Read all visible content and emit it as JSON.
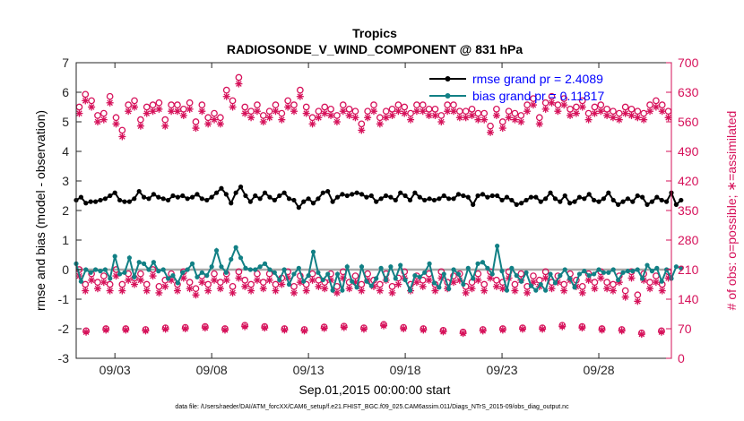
{
  "chart_data": {
    "type": "line",
    "title": "Tropics",
    "subtitle": "RADIOSONDE_V_WIND_COMPONENT @ 831 hPa",
    "xlabel": "Sep.01,2015 00:00:00 start",
    "ylabel": "rmse and bias (model - observation)",
    "y2label": "# of obs: o=possible; ∗=assimilated",
    "xlim": [
      0,
      30.75
    ],
    "ylim": [
      -3,
      7
    ],
    "y2lim": [
      0,
      700
    ],
    "xticks": [
      {
        "x": 2,
        "label": "09/03"
      },
      {
        "x": 7,
        "label": "09/08"
      },
      {
        "x": 12,
        "label": "09/13"
      },
      {
        "x": 17,
        "label": "09/18"
      },
      {
        "x": 22,
        "label": "09/23"
      },
      {
        "x": 27,
        "label": "09/28"
      }
    ],
    "yticks": [
      -3,
      -2,
      -1,
      0,
      1,
      2,
      3,
      4,
      5,
      6,
      7
    ],
    "y2ticks": [
      0,
      70,
      140,
      210,
      280,
      350,
      420,
      490,
      560,
      630,
      700
    ],
    "x_step_days": 0.25,
    "legend_position": "top-right",
    "series": [
      {
        "name": "rmse grand pr = 2.4089",
        "axis": "left",
        "color": "#000000",
        "marker": "filled-circle",
        "values": [
          2.35,
          2.45,
          2.25,
          2.3,
          2.3,
          2.35,
          2.4,
          2.5,
          2.6,
          2.35,
          2.3,
          2.3,
          2.4,
          2.65,
          2.45,
          2.4,
          2.55,
          2.45,
          2.4,
          2.35,
          2.5,
          2.45,
          2.5,
          2.4,
          2.45,
          2.55,
          2.4,
          2.35,
          2.45,
          2.6,
          2.75,
          2.55,
          2.25,
          2.6,
          2.8,
          2.5,
          2.3,
          2.5,
          2.4,
          2.6,
          2.45,
          2.35,
          2.5,
          2.6,
          2.4,
          2.35,
          2.1,
          2.3,
          2.4,
          2.25,
          2.4,
          2.6,
          2.65,
          2.3,
          2.45,
          2.55,
          2.5,
          2.55,
          2.6,
          2.55,
          2.45,
          2.5,
          2.3,
          2.4,
          2.5,
          2.45,
          2.35,
          2.6,
          2.5,
          2.35,
          2.6,
          2.45,
          2.35,
          2.4,
          2.35,
          2.4,
          2.5,
          2.4,
          2.4,
          2.55,
          2.5,
          2.45,
          2.2,
          2.5,
          2.55,
          2.45,
          2.5,
          2.5,
          2.35,
          2.45,
          2.35,
          2.2,
          2.25,
          2.35,
          2.45,
          2.45,
          2.3,
          2.4,
          2.6,
          2.4,
          2.3,
          2.5,
          2.25,
          2.3,
          2.45,
          2.4,
          2.55,
          2.35,
          2.3,
          2.4,
          2.6,
          2.35,
          2.2,
          2.3,
          2.4,
          2.3,
          2.5,
          2.45,
          2.2,
          2.3,
          2.45,
          2.35,
          2.3,
          2.6,
          2.2,
          2.35
        ]
      },
      {
        "name": "bias grand pr = 0.11817",
        "axis": "left",
        "color": "#128085",
        "marker": "filled-circle",
        "values": [
          0.2,
          -0.4,
          0.0,
          -0.1,
          0.0,
          -0.05,
          0.0,
          -0.3,
          0.45,
          -0.15,
          -0.1,
          0.4,
          -0.25,
          0.25,
          0.2,
          0.0,
          0.25,
          -0.05,
          0.0,
          -0.3,
          -0.2,
          -0.45,
          -0.1,
          0.0,
          0.2,
          -0.25,
          -0.1,
          -0.2,
          0.1,
          0.65,
          0.1,
          -0.1,
          0.35,
          0.75,
          0.4,
          0.05,
          0.0,
          0.0,
          0.1,
          0.2,
          0.0,
          -0.1,
          -0.35,
          0.0,
          -0.5,
          -0.15,
          0.05,
          -0.4,
          -0.2,
          0.6,
          -0.1,
          -0.35,
          -0.15,
          -0.7,
          -0.15,
          -0.7,
          0.1,
          -0.4,
          -0.6,
          0.1,
          -0.4,
          -0.55,
          -0.3,
          0.05,
          -0.35,
          0.1,
          -0.3,
          0.15,
          -0.35,
          -0.7,
          -0.2,
          -0.25,
          -0.1,
          0.2,
          -0.45,
          -0.6,
          -0.15,
          -0.65,
          0.0,
          -0.15,
          -0.5,
          0.05,
          -0.3,
          0.2,
          0.25,
          0.05,
          -0.15,
          0.8,
          -0.05,
          -0.7,
          0.05,
          -0.2,
          -0.4,
          -0.1,
          -0.55,
          -0.7,
          -0.5,
          -0.7,
          -0.15,
          -0.45,
          -0.2,
          0.0,
          -0.3,
          -0.6,
          -0.15,
          -0.05,
          -0.2,
          -0.15,
          0.0,
          -0.1,
          -0.1,
          0.0,
          -0.35,
          -0.1,
          -0.05,
          -0.05,
          0.0,
          -0.3,
          0.15,
          -0.05,
          0.05,
          -0.4,
          0.0,
          -0.3,
          0.1,
          0.05
        ]
      },
      {
        "name": "obs possible (upper)",
        "axis": "right",
        "color": "#d6115a",
        "marker": "open-circle",
        "values": [
          595,
          625,
          610,
          575,
          580,
          620,
          570,
          540,
          600,
          610,
          565,
          595,
          600,
          605,
          565,
          600,
          600,
          590,
          605,
          560,
          600,
          570,
          580,
          570,
          635,
          610,
          665,
          595,
          585,
          600,
          575,
          585,
          600,
          580,
          610,
          600,
          635,
          595,
          570,
          585,
          595,
          590,
          575,
          600,
          590,
          585,
          555,
          585,
          600,
          570,
          585,
          590,
          600,
          595,
          580,
          600,
          600,
          590,
          590,
          575,
          600,
          600,
          585,
          585,
          590,
          580,
          580,
          550,
          590,
          560,
          585,
          580,
          575,
          600,
          615,
          570,
          605,
          620,
          600,
          615,
          590,
          595,
          610,
          580,
          595,
          600,
          590,
          585,
          580,
          595,
          590,
          585,
          580,
          600,
          610,
          600,
          585
        ]
      },
      {
        "name": "obs assimilated (upper)",
        "axis": "right",
        "color": "#d6115a",
        "marker": "asterisk",
        "values": [
          580,
          610,
          595,
          560,
          565,
          605,
          555,
          525,
          585,
          595,
          550,
          580,
          585,
          590,
          550,
          585,
          585,
          575,
          590,
          545,
          585,
          555,
          565,
          555,
          620,
          595,
          650,
          580,
          570,
          585,
          560,
          570,
          585,
          565,
          595,
          585,
          620,
          580,
          555,
          570,
          580,
          575,
          560,
          585,
          575,
          570,
          540,
          570,
          585,
          555,
          570,
          575,
          585,
          580,
          565,
          585,
          585,
          575,
          575,
          560,
          585,
          585,
          570,
          570,
          575,
          565,
          565,
          535,
          575,
          545,
          570,
          565,
          560,
          585,
          600,
          555,
          590,
          605,
          585,
          600,
          575,
          580,
          595,
          565,
          580,
          585,
          575,
          570,
          565,
          580,
          575,
          570,
          565,
          585,
          595,
          585,
          570
        ]
      },
      {
        "name": "obs possible (lower)",
        "axis": "right",
        "color": "#d6115a",
        "marker": "open-circle",
        "values": [
          210,
          175,
          200,
          180,
          195,
          175,
          210,
          175,
          200,
          190,
          200,
          175,
          210,
          170,
          185,
          200,
          175,
          205,
          180,
          165,
          195,
          175,
          200,
          180,
          200,
          170,
          205,
          185,
          175,
          200,
          180,
          200,
          175,
          190,
          205,
          170,
          195,
          175,
          200,
          185,
          180,
          200,
          170,
          205,
          180,
          195,
          175,
          200,
          185,
          175,
          200,
          170,
          190,
          205,
          175,
          195,
          185,
          200,
          175,
          205,
          180,
          195,
          200,
          170,
          180,
          200,
          175,
          205,
          185,
          180,
          205,
          175,
          200,
          170,
          195,
          185,
          205,
          180,
          195,
          175,
          200,
          185,
          170,
          200,
          180,
          205,
          180,
          175,
          195,
          160,
          205,
          150,
          200,
          180,
          195,
          175,
          205
        ]
      },
      {
        "name": "obs assimilated (lower)",
        "axis": "right",
        "color": "#d6115a",
        "marker": "asterisk",
        "values": [
          195,
          160,
          185,
          165,
          180,
          160,
          195,
          160,
          185,
          175,
          185,
          160,
          195,
          155,
          170,
          185,
          160,
          190,
          165,
          150,
          180,
          160,
          185,
          165,
          185,
          155,
          190,
          170,
          160,
          185,
          165,
          185,
          160,
          175,
          190,
          155,
          180,
          160,
          185,
          170,
          165,
          185,
          155,
          190,
          165,
          180,
          160,
          185,
          170,
          160,
          185,
          155,
          175,
          190,
          160,
          180,
          170,
          185,
          160,
          190,
          165,
          180,
          185,
          155,
          165,
          185,
          160,
          190,
          170,
          165,
          190,
          160,
          185,
          155,
          180,
          170,
          190,
          165,
          180,
          160,
          185,
          170,
          155,
          185,
          165,
          190,
          165,
          160,
          180,
          145,
          190,
          135,
          185,
          165,
          180,
          160,
          190
        ]
      },
      {
        "name": "obs possible (radiosonde low)",
        "axis": "right",
        "color": "#d6115a",
        "marker": "open-circle",
        "values": [
          65,
          70,
          70,
          68,
          72,
          73,
          75,
          70,
          78,
          75,
          70,
          68,
          74,
          76,
          72,
          80,
          73,
          70,
          66,
          62,
          68,
          70,
          72,
          72,
          78,
          75,
          70,
          68,
          60,
          65
        ]
      },
      {
        "name": "obs assimilated (radiosonde low)",
        "axis": "right",
        "color": "#d6115a",
        "marker": "asterisk",
        "values": [
          62,
          67,
          67,
          65,
          69,
          70,
          72,
          67,
          75,
          72,
          67,
          65,
          71,
          73,
          69,
          77,
          70,
          67,
          63,
          59,
          65,
          67,
          69,
          69,
          75,
          72,
          67,
          65,
          57,
          62
        ]
      }
    ]
  },
  "footer": "data file: /Users/raeder/DAI/ATM_forcXX/CAM6_setup/f.e21.FHIST_BGC.f09_025.CAM6assim.011/Diags_NTrS_2015-09/obs_diag_output.nc"
}
